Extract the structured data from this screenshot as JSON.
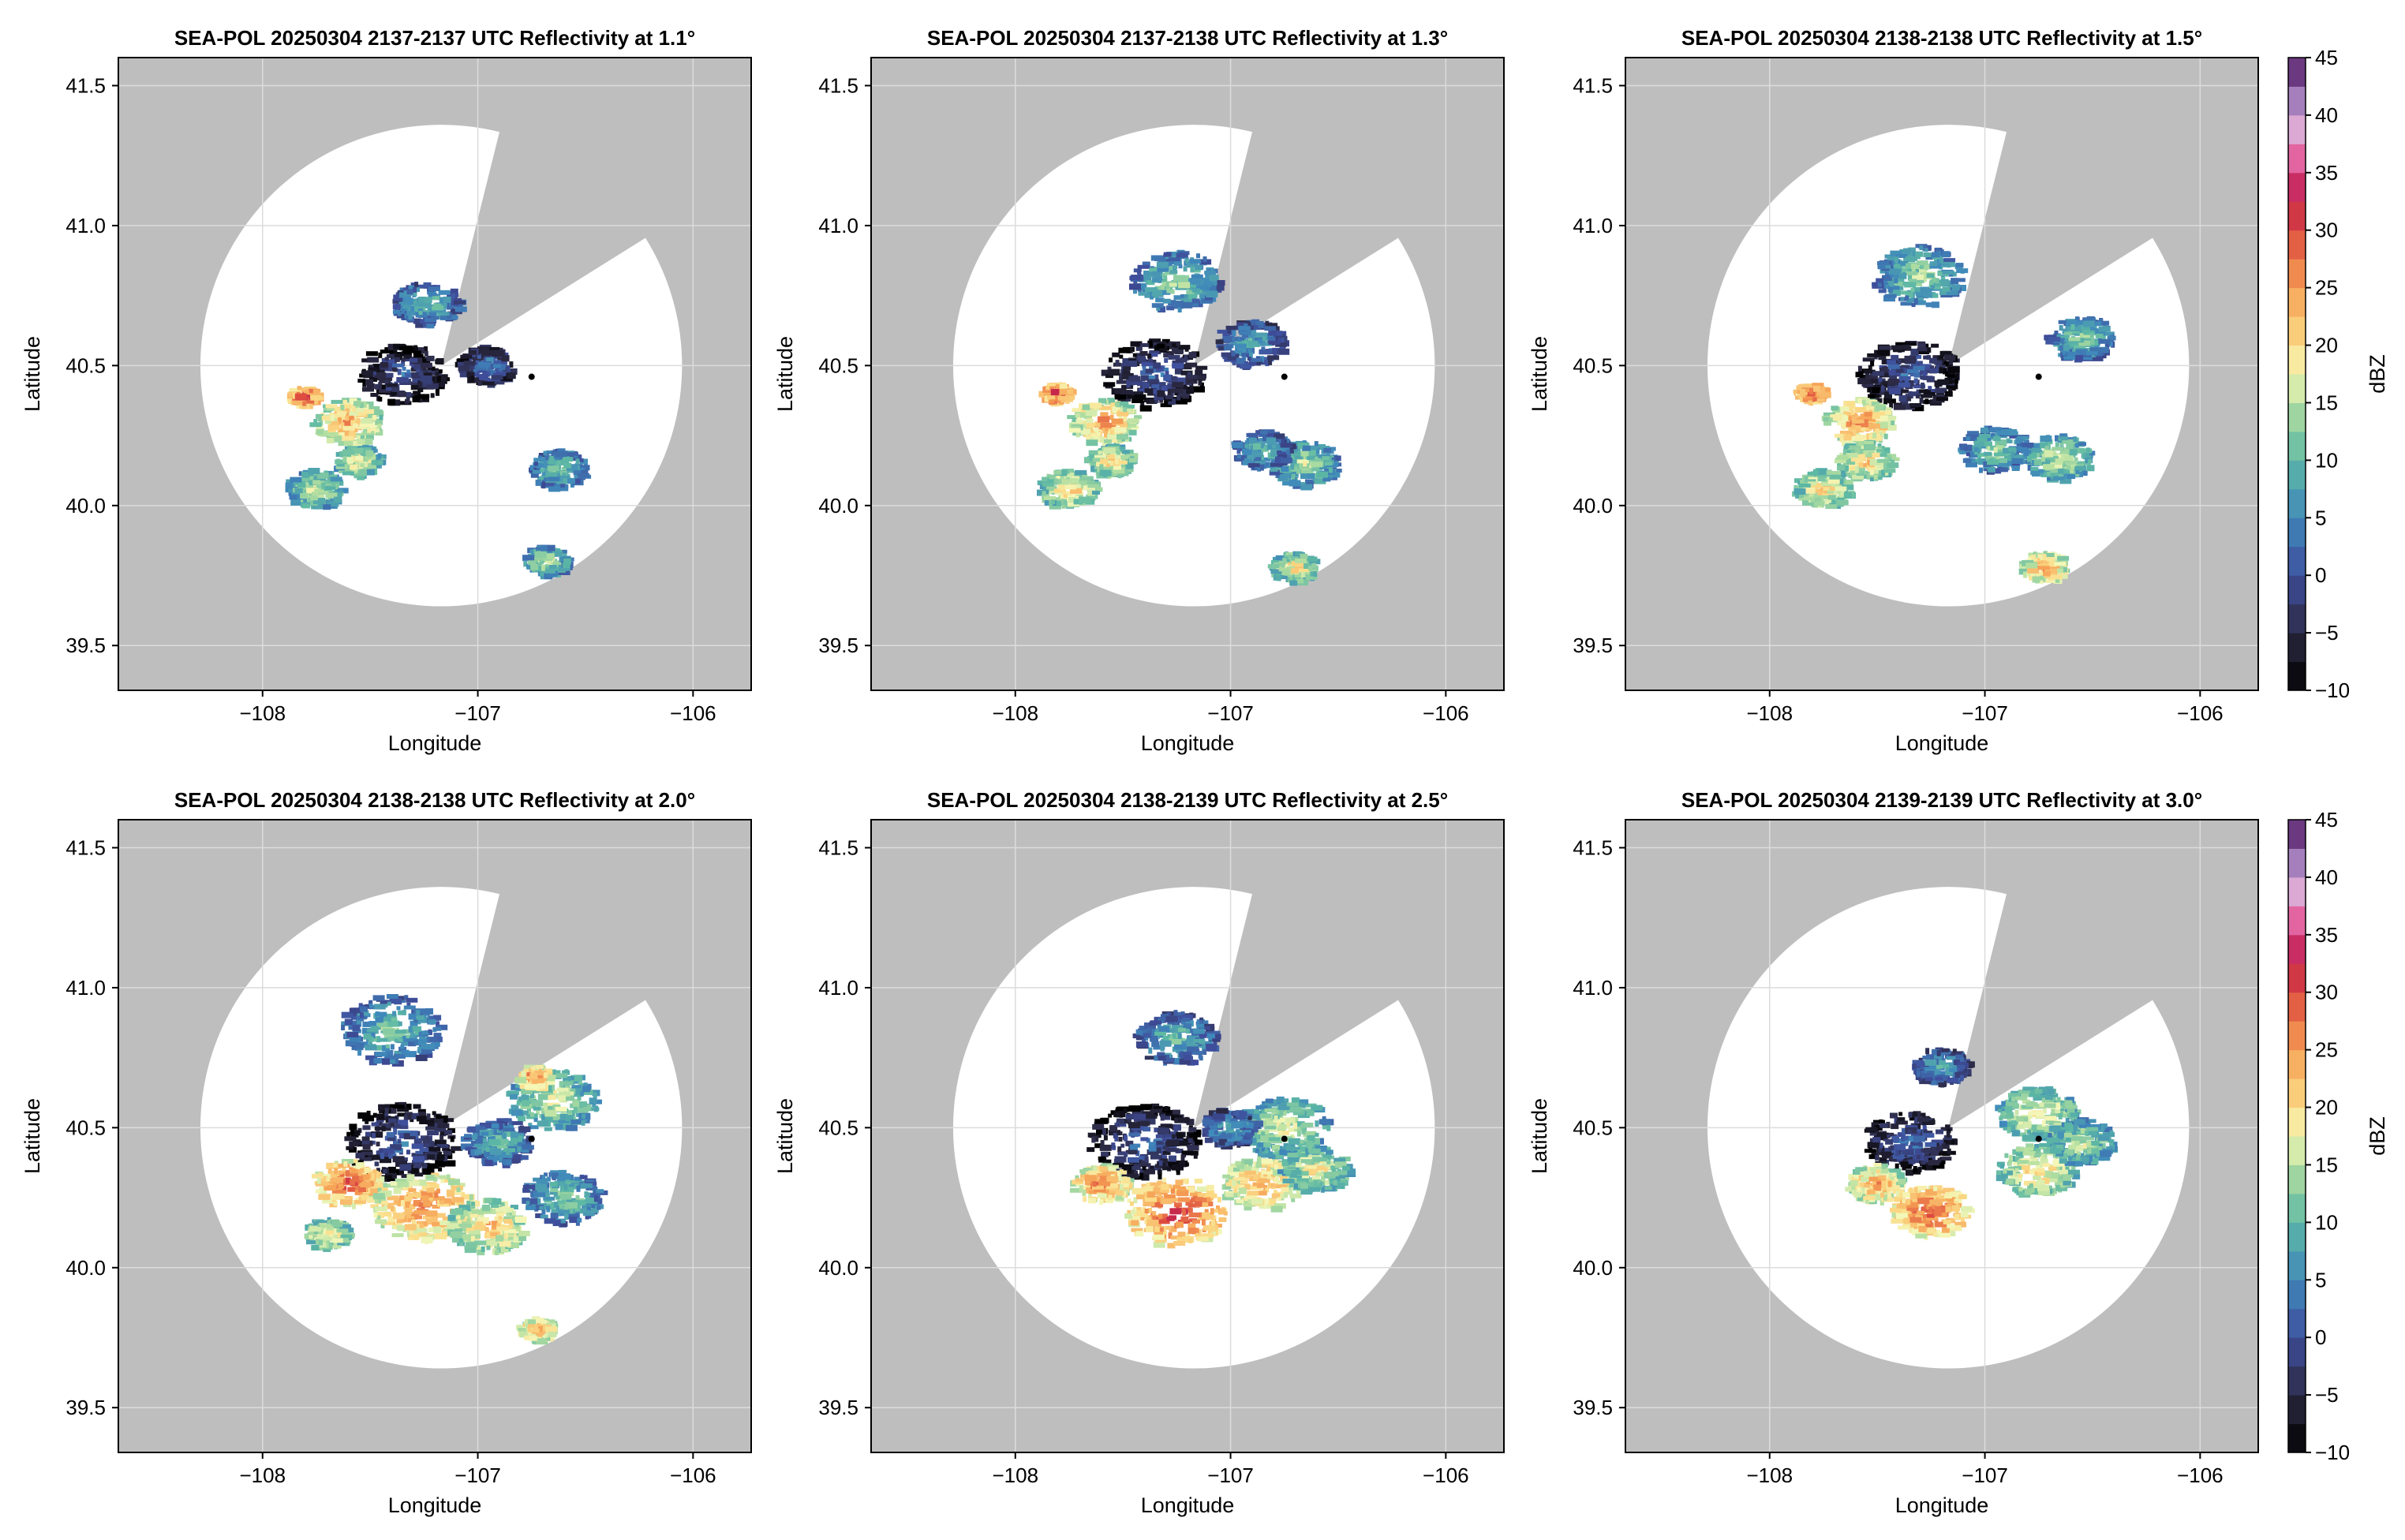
{
  "figure": {
    "colorbar": {
      "label": "dBZ",
      "min": -10,
      "max": 45,
      "step": 2.5,
      "ticks": [
        -10,
        -5,
        0,
        5,
        10,
        15,
        20,
        25,
        30,
        35,
        40,
        45
      ],
      "tick_labels": [
        "−10",
        "−5",
        "0",
        "5",
        "10",
        "15",
        "20",
        "25",
        "30",
        "35",
        "40",
        "45"
      ],
      "colormap": [
        {
          "v": -10,
          "c": "#000000"
        },
        {
          "v": -5,
          "c": "#2c2a44"
        },
        {
          "v": 0,
          "c": "#3f4e9c"
        },
        {
          "v": 5,
          "c": "#3f88bb"
        },
        {
          "v": 10,
          "c": "#5db8a4"
        },
        {
          "v": 15,
          "c": "#b4dfa0"
        },
        {
          "v": 17.5,
          "c": "#f4f7b8"
        },
        {
          "v": 20,
          "c": "#fbdc88"
        },
        {
          "v": 25,
          "c": "#f6a155"
        },
        {
          "v": 30,
          "c": "#dd4a3f"
        },
        {
          "v": 33,
          "c": "#c01f50"
        },
        {
          "v": 36,
          "c": "#e05a9a"
        },
        {
          "v": 38,
          "c": "#ecaed6"
        },
        {
          "v": 40,
          "c": "#bfa1d0"
        },
        {
          "v": 42.5,
          "c": "#8a5ca8"
        },
        {
          "v": 45,
          "c": "#4b1657"
        }
      ]
    },
    "colors": {
      "mask": "#bebebe",
      "coverage": "#ffffff",
      "grid": "#dcdcdc",
      "radar_marker": "#000000"
    }
  },
  "chart_data": [
    {
      "type": "heatmap",
      "title": "SEA-POL 20250304 2137-2137 UTC Reflectivity at 1.1°",
      "xlabel": "Longitude",
      "ylabel": "Latitude",
      "xlim": [
        -108.67,
        -105.73
      ],
      "ylim": [
        39.34,
        41.6
      ],
      "xticks": [
        -108,
        -107,
        -106
      ],
      "xtick_labels": [
        "−108",
        "−107",
        "−106"
      ],
      "yticks": [
        39.5,
        40.0,
        40.5,
        41.0,
        41.5
      ],
      "ytick_labels": [
        "39.5",
        "40.0",
        "40.5",
        "41.0",
        "41.5"
      ],
      "grid": true,
      "colorbar": false,
      "radar_origin": {
        "lon": -107.17,
        "lat": 40.5
      },
      "range_radius_deg_lat": 0.86,
      "blocked_sectors_deg_from_north": [
        [
          14,
          58
        ]
      ],
      "radar_site_marker": {
        "lon": -106.75,
        "lat": 40.46
      },
      "echoes": [
        {
          "lon": -107.35,
          "lat": 40.47,
          "dbz": 2,
          "spread": 0.08
        },
        {
          "lon": -107.8,
          "lat": 40.39,
          "dbz": 33,
          "spread": 0.025
        },
        {
          "lon": -107.6,
          "lat": 40.3,
          "dbz": 25,
          "spread": 0.06
        },
        {
          "lon": -107.55,
          "lat": 40.16,
          "dbz": 20,
          "spread": 0.04
        },
        {
          "lon": -107.75,
          "lat": 40.06,
          "dbz": 18,
          "spread": 0.05
        },
        {
          "lon": -107.23,
          "lat": 40.72,
          "dbz": 12,
          "spread": 0.06
        },
        {
          "lon": -106.95,
          "lat": 40.5,
          "dbz": 6,
          "spread": 0.05
        },
        {
          "lon": -106.62,
          "lat": 40.13,
          "dbz": 14,
          "spread": 0.05
        },
        {
          "lon": -106.68,
          "lat": 39.8,
          "dbz": 17,
          "spread": 0.04
        }
      ]
    },
    {
      "type": "heatmap",
      "title": "SEA-POL 20250304 2137-2138 UTC Reflectivity at 1.3°",
      "xlabel": "Longitude",
      "ylabel": "Latitude",
      "xlim": [
        -108.67,
        -105.73
      ],
      "ylim": [
        39.34,
        41.6
      ],
      "xticks": [
        -108,
        -107,
        -106
      ],
      "xtick_labels": [
        "−108",
        "−107",
        "−106"
      ],
      "yticks": [
        39.5,
        40.0,
        40.5,
        41.0,
        41.5
      ],
      "ytick_labels": [
        "39.5",
        "40.0",
        "40.5",
        "41.0",
        "41.5"
      ],
      "grid": true,
      "colorbar": false,
      "radar_origin": {
        "lon": -107.17,
        "lat": 40.5
      },
      "range_radius_deg_lat": 0.86,
      "blocked_sectors_deg_from_north": [
        [
          14,
          58
        ]
      ],
      "radar_site_marker": {
        "lon": -106.75,
        "lat": 40.46
      },
      "echoes": [
        {
          "lon": -107.35,
          "lat": 40.47,
          "dbz": 3,
          "spread": 0.09
        },
        {
          "lon": -107.8,
          "lat": 40.4,
          "dbz": 33,
          "spread": 0.025
        },
        {
          "lon": -107.58,
          "lat": 40.3,
          "dbz": 26,
          "spread": 0.06
        },
        {
          "lon": -107.55,
          "lat": 40.16,
          "dbz": 22,
          "spread": 0.04
        },
        {
          "lon": -107.75,
          "lat": 40.06,
          "dbz": 22,
          "spread": 0.05
        },
        {
          "lon": -107.25,
          "lat": 40.8,
          "dbz": 14,
          "spread": 0.08
        },
        {
          "lon": -106.9,
          "lat": 40.58,
          "dbz": 10,
          "spread": 0.06
        },
        {
          "lon": -106.65,
          "lat": 40.15,
          "dbz": 16,
          "spread": 0.06
        },
        {
          "lon": -106.85,
          "lat": 40.2,
          "dbz": 12,
          "spread": 0.05
        },
        {
          "lon": -106.7,
          "lat": 39.78,
          "dbz": 21,
          "spread": 0.04
        }
      ]
    },
    {
      "type": "heatmap",
      "title": "SEA-POL 20250304 2138-2138 UTC Reflectivity at 1.5°",
      "xlabel": "Longitude",
      "ylabel": "Latitude",
      "xlim": [
        -108.67,
        -105.73
      ],
      "ylim": [
        39.34,
        41.6
      ],
      "xticks": [
        -108,
        -107,
        -106
      ],
      "xtick_labels": [
        "−108",
        "−107",
        "−106"
      ],
      "yticks": [
        39.5,
        40.0,
        40.5,
        41.0,
        41.5
      ],
      "ytick_labels": [
        "39.5",
        "40.0",
        "40.5",
        "41.0",
        "41.5"
      ],
      "grid": true,
      "colorbar": true,
      "radar_origin": {
        "lon": -107.17,
        "lat": 40.5
      },
      "range_radius_deg_lat": 0.86,
      "blocked_sectors_deg_from_north": [
        [
          14,
          58
        ]
      ],
      "radar_site_marker": {
        "lon": -106.75,
        "lat": 40.46
      },
      "echoes": [
        {
          "lon": -107.35,
          "lat": 40.47,
          "dbz": 3,
          "spread": 0.09
        },
        {
          "lon": -107.8,
          "lat": 40.4,
          "dbz": 33,
          "spread": 0.025
        },
        {
          "lon": -107.58,
          "lat": 40.3,
          "dbz": 27,
          "spread": 0.06
        },
        {
          "lon": -107.55,
          "lat": 40.16,
          "dbz": 23,
          "spread": 0.05
        },
        {
          "lon": -107.75,
          "lat": 40.06,
          "dbz": 22,
          "spread": 0.05
        },
        {
          "lon": -107.3,
          "lat": 40.82,
          "dbz": 15,
          "spread": 0.08
        },
        {
          "lon": -106.55,
          "lat": 40.6,
          "dbz": 14,
          "spread": 0.06
        },
        {
          "lon": -106.65,
          "lat": 40.17,
          "dbz": 18,
          "spread": 0.06
        },
        {
          "lon": -106.95,
          "lat": 40.2,
          "dbz": 14,
          "spread": 0.06
        },
        {
          "lon": -106.72,
          "lat": 39.78,
          "dbz": 26,
          "spread": 0.04
        }
      ]
    },
    {
      "type": "heatmap",
      "title": "SEA-POL 20250304 2138-2138 UTC Reflectivity at 2.0°",
      "xlabel": "Longitude",
      "ylabel": "Latitude",
      "xlim": [
        -108.67,
        -105.73
      ],
      "ylim": [
        39.34,
        41.6
      ],
      "xticks": [
        -108,
        -107,
        -106
      ],
      "xtick_labels": [
        "−108",
        "−107",
        "−106"
      ],
      "yticks": [
        39.5,
        40.0,
        40.5,
        41.0,
        41.5
      ],
      "ytick_labels": [
        "39.5",
        "40.0",
        "40.5",
        "41.0",
        "41.5"
      ],
      "grid": true,
      "colorbar": false,
      "radar_origin": {
        "lon": -107.17,
        "lat": 40.5
      },
      "range_radius_deg_lat": 0.86,
      "blocked_sectors_deg_from_north": [
        [
          14,
          58
        ]
      ],
      "radar_site_marker": {
        "lon": -106.75,
        "lat": 40.46
      },
      "echoes": [
        {
          "lon": -107.35,
          "lat": 40.45,
          "dbz": 3,
          "spread": 0.1
        },
        {
          "lon": -107.6,
          "lat": 40.3,
          "dbz": 30,
          "spread": 0.06
        },
        {
          "lon": -107.25,
          "lat": 40.22,
          "dbz": 28,
          "spread": 0.09
        },
        {
          "lon": -106.95,
          "lat": 40.15,
          "dbz": 24,
          "spread": 0.07
        },
        {
          "lon": -107.4,
          "lat": 40.85,
          "dbz": 13,
          "spread": 0.09
        },
        {
          "lon": -106.65,
          "lat": 40.6,
          "dbz": 18,
          "spread": 0.08
        },
        {
          "lon": -106.9,
          "lat": 40.45,
          "dbz": 12,
          "spread": 0.06
        },
        {
          "lon": -106.6,
          "lat": 40.25,
          "dbz": 14,
          "spread": 0.07
        },
        {
          "lon": -106.73,
          "lat": 40.68,
          "dbz": 28,
          "spread": 0.03
        },
        {
          "lon": -107.7,
          "lat": 40.12,
          "dbz": 22,
          "spread": 0.04
        },
        {
          "lon": -106.72,
          "lat": 39.78,
          "dbz": 26,
          "spread": 0.03
        }
      ]
    },
    {
      "type": "heatmap",
      "title": "SEA-POL 20250304 2138-2139 UTC Reflectivity at 2.5°",
      "xlabel": "Longitude",
      "ylabel": "Latitude",
      "xlim": [
        -108.67,
        -105.73
      ],
      "ylim": [
        39.34,
        41.6
      ],
      "xticks": [
        -108,
        -107,
        -106
      ],
      "xtick_labels": [
        "−108",
        "−107",
        "−106"
      ],
      "yticks": [
        39.5,
        40.0,
        40.5,
        41.0,
        41.5
      ],
      "ytick_labels": [
        "39.5",
        "40.0",
        "40.5",
        "41.0",
        "41.5"
      ],
      "grid": true,
      "colorbar": false,
      "radar_origin": {
        "lon": -107.17,
        "lat": 40.5
      },
      "range_radius_deg_lat": 0.86,
      "blocked_sectors_deg_from_north": [
        [
          14,
          58
        ]
      ],
      "radar_site_marker": {
        "lon": -106.75,
        "lat": 40.46
      },
      "echoes": [
        {
          "lon": -107.4,
          "lat": 40.45,
          "dbz": 3,
          "spread": 0.1
        },
        {
          "lon": -107.6,
          "lat": 40.3,
          "dbz": 28,
          "spread": 0.05
        },
        {
          "lon": -107.25,
          "lat": 40.2,
          "dbz": 31,
          "spread": 0.09
        },
        {
          "lon": -106.85,
          "lat": 40.3,
          "dbz": 26,
          "spread": 0.07
        },
        {
          "lon": -107.25,
          "lat": 40.82,
          "dbz": 12,
          "spread": 0.07
        },
        {
          "lon": -106.75,
          "lat": 40.5,
          "dbz": 18,
          "spread": 0.08
        },
        {
          "lon": -106.6,
          "lat": 40.35,
          "dbz": 20,
          "spread": 0.06
        },
        {
          "lon": -107.0,
          "lat": 40.5,
          "dbz": 10,
          "spread": 0.05
        }
      ]
    },
    {
      "type": "heatmap",
      "title": "SEA-POL 20250304 2139-2139 UTC Reflectivity at 3.0°",
      "xlabel": "Longitude",
      "ylabel": "Latitude",
      "xlim": [
        -108.67,
        -105.73
      ],
      "ylim": [
        39.34,
        41.6
      ],
      "xticks": [
        -108,
        -107,
        -106
      ],
      "xtick_labels": [
        "−108",
        "−107",
        "−106"
      ],
      "yticks": [
        39.5,
        40.0,
        40.5,
        41.0,
        41.5
      ],
      "ytick_labels": [
        "39.5",
        "40.0",
        "40.5",
        "41.0",
        "41.5"
      ],
      "grid": true,
      "colorbar": true,
      "radar_origin": {
        "lon": -107.17,
        "lat": 40.5
      },
      "range_radius_deg_lat": 0.86,
      "blocked_sectors_deg_from_north": [
        [
          14,
          58
        ]
      ],
      "radar_site_marker": {
        "lon": -106.75,
        "lat": 40.46
      },
      "echoes": [
        {
          "lon": -107.35,
          "lat": 40.45,
          "dbz": 4,
          "spread": 0.08
        },
        {
          "lon": -107.5,
          "lat": 40.3,
          "dbz": 26,
          "spread": 0.05
        },
        {
          "lon": -107.25,
          "lat": 40.2,
          "dbz": 30,
          "spread": 0.07
        },
        {
          "lon": -106.75,
          "lat": 40.35,
          "dbz": 22,
          "spread": 0.07
        },
        {
          "lon": -107.2,
          "lat": 40.72,
          "dbz": 10,
          "spread": 0.05
        },
        {
          "lon": -106.75,
          "lat": 40.55,
          "dbz": 20,
          "spread": 0.07
        },
        {
          "lon": -106.55,
          "lat": 40.45,
          "dbz": 17,
          "spread": 0.06
        }
      ]
    }
  ]
}
